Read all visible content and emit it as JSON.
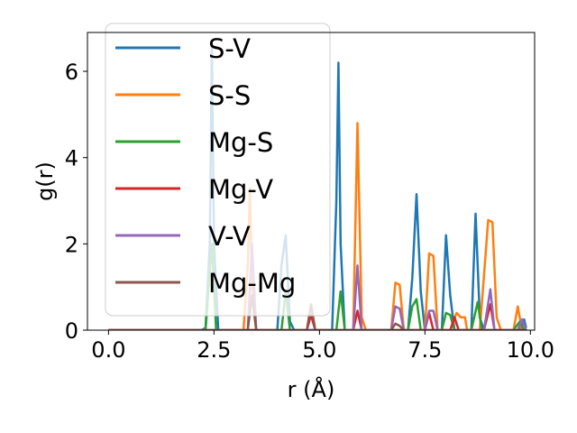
{
  "chart_data": {
    "type": "line",
    "xlabel": "r (Å)",
    "ylabel": "g(r)",
    "xlim": [
      -0.5,
      10.1
    ],
    "ylim": [
      0,
      6.9
    ],
    "xticks": [
      0.0,
      2.5,
      5.0,
      7.5,
      10.0
    ],
    "xtick_labels": [
      "0.0",
      "2.5",
      "5.0",
      "7.5",
      "10.0"
    ],
    "yticks": [
      0,
      2,
      4,
      6
    ],
    "ytick_labels": [
      "0",
      "2",
      "4",
      "6"
    ],
    "grid": false,
    "legend_position": "upper-left",
    "series": [
      {
        "name": "S-V",
        "color": "#1f77b4",
        "points": [
          [
            0.0,
            0
          ],
          [
            2.2,
            0
          ],
          [
            2.3,
            0.05
          ],
          [
            2.4,
            2.0
          ],
          [
            2.45,
            6.6
          ],
          [
            2.5,
            2.0
          ],
          [
            2.6,
            0
          ],
          [
            4.0,
            0
          ],
          [
            4.1,
            1.5
          ],
          [
            4.2,
            2.2
          ],
          [
            4.3,
            0.2
          ],
          [
            4.4,
            0
          ],
          [
            5.3,
            0
          ],
          [
            5.4,
            3.0
          ],
          [
            5.45,
            6.2
          ],
          [
            5.5,
            2.0
          ],
          [
            5.6,
            0
          ],
          [
            7.1,
            0
          ],
          [
            7.2,
            1.2
          ],
          [
            7.3,
            3.15
          ],
          [
            7.4,
            0.9
          ],
          [
            7.5,
            0
          ],
          [
            7.9,
            0
          ],
          [
            8.0,
            2.2
          ],
          [
            8.1,
            0.8
          ],
          [
            8.2,
            0
          ],
          [
            8.6,
            0
          ],
          [
            8.7,
            2.7
          ],
          [
            8.8,
            0.3
          ],
          [
            8.9,
            0
          ],
          [
            9.7,
            0
          ],
          [
            9.8,
            0.12
          ],
          [
            9.85,
            0.25
          ],
          [
            9.9,
            0.05
          ]
        ]
      },
      {
        "name": "S-S",
        "color": "#ff7f0e",
        "points": [
          [
            0.0,
            0
          ],
          [
            3.2,
            0
          ],
          [
            3.3,
            1.5
          ],
          [
            3.35,
            3.3
          ],
          [
            3.4,
            1.0
          ],
          [
            3.5,
            0
          ],
          [
            5.8,
            0
          ],
          [
            5.9,
            4.8
          ],
          [
            6.0,
            0.3
          ],
          [
            6.1,
            0
          ],
          [
            6.7,
            0
          ],
          [
            6.8,
            1.1
          ],
          [
            6.9,
            1.05
          ],
          [
            7.0,
            0
          ],
          [
            7.5,
            0
          ],
          [
            7.6,
            1.78
          ],
          [
            7.7,
            1.72
          ],
          [
            7.8,
            0
          ],
          [
            8.1,
            0
          ],
          [
            8.25,
            0.4
          ],
          [
            8.35,
            0.3
          ],
          [
            8.45,
            0.3
          ],
          [
            8.5,
            0
          ],
          [
            8.8,
            0
          ],
          [
            9.0,
            2.55
          ],
          [
            9.1,
            2.5
          ],
          [
            9.2,
            0.3
          ],
          [
            9.3,
            0
          ],
          [
            9.6,
            0
          ],
          [
            9.7,
            0.55
          ],
          [
            9.8,
            0
          ],
          [
            9.9,
            0
          ]
        ]
      },
      {
        "name": "Mg-S",
        "color": "#2ca02c",
        "points": [
          [
            0.0,
            0
          ],
          [
            2.3,
            0
          ],
          [
            2.45,
            2.0
          ],
          [
            2.55,
            0
          ],
          [
            4.1,
            0
          ],
          [
            4.2,
            0.9
          ],
          [
            4.3,
            0
          ],
          [
            5.4,
            0
          ],
          [
            5.5,
            0.9
          ],
          [
            5.6,
            0
          ],
          [
            7.1,
            0
          ],
          [
            7.2,
            0.55
          ],
          [
            7.3,
            0.72
          ],
          [
            7.4,
            0
          ],
          [
            7.9,
            0
          ],
          [
            8.0,
            0.4
          ],
          [
            8.1,
            0.35
          ],
          [
            8.2,
            0
          ],
          [
            8.6,
            0
          ],
          [
            8.75,
            0.65
          ],
          [
            8.85,
            0
          ],
          [
            9.6,
            0
          ],
          [
            9.75,
            0.2
          ],
          [
            9.85,
            0
          ],
          [
            9.9,
            0.1
          ]
        ]
      },
      {
        "name": "Mg-V",
        "color": "#d62728",
        "points": [
          [
            0.0,
            0
          ],
          [
            4.7,
            0
          ],
          [
            4.8,
            0.35
          ],
          [
            4.9,
            0
          ],
          [
            5.8,
            0
          ],
          [
            5.9,
            0.45
          ],
          [
            6.0,
            0
          ],
          [
            7.5,
            0
          ],
          [
            7.6,
            0.4
          ],
          [
            7.7,
            0
          ],
          [
            8.1,
            0
          ],
          [
            8.2,
            0.3
          ],
          [
            8.3,
            0
          ],
          [
            8.9,
            0
          ],
          [
            9.05,
            0.6
          ],
          [
            9.15,
            0
          ],
          [
            9.9,
            0
          ]
        ]
      },
      {
        "name": "V-V",
        "color": "#9467bd",
        "points": [
          [
            0.0,
            0
          ],
          [
            3.3,
            0
          ],
          [
            3.4,
            2.0
          ],
          [
            3.5,
            0
          ],
          [
            5.8,
            0
          ],
          [
            5.9,
            1.5
          ],
          [
            6.0,
            0
          ],
          [
            6.7,
            0
          ],
          [
            6.8,
            0.55
          ],
          [
            6.9,
            0.5
          ],
          [
            7.0,
            0
          ],
          [
            7.5,
            0
          ],
          [
            7.6,
            0.45
          ],
          [
            7.7,
            0.45
          ],
          [
            7.8,
            0
          ],
          [
            8.9,
            0
          ],
          [
            9.05,
            0.95
          ],
          [
            9.15,
            0
          ],
          [
            9.7,
            0
          ],
          [
            9.8,
            0.25
          ],
          [
            9.9,
            0
          ]
        ]
      },
      {
        "name": "Mg-Mg",
        "color": "#8c564b",
        "points": [
          [
            0.0,
            0
          ],
          [
            3.3,
            0
          ],
          [
            3.4,
            0.8
          ],
          [
            3.5,
            0
          ],
          [
            4.7,
            0
          ],
          [
            4.8,
            0.6
          ],
          [
            4.9,
            0
          ],
          [
            6.7,
            0
          ],
          [
            6.8,
            0.15
          ],
          [
            6.9,
            0.1
          ],
          [
            7.0,
            0
          ],
          [
            9.9,
            0
          ]
        ]
      }
    ]
  }
}
